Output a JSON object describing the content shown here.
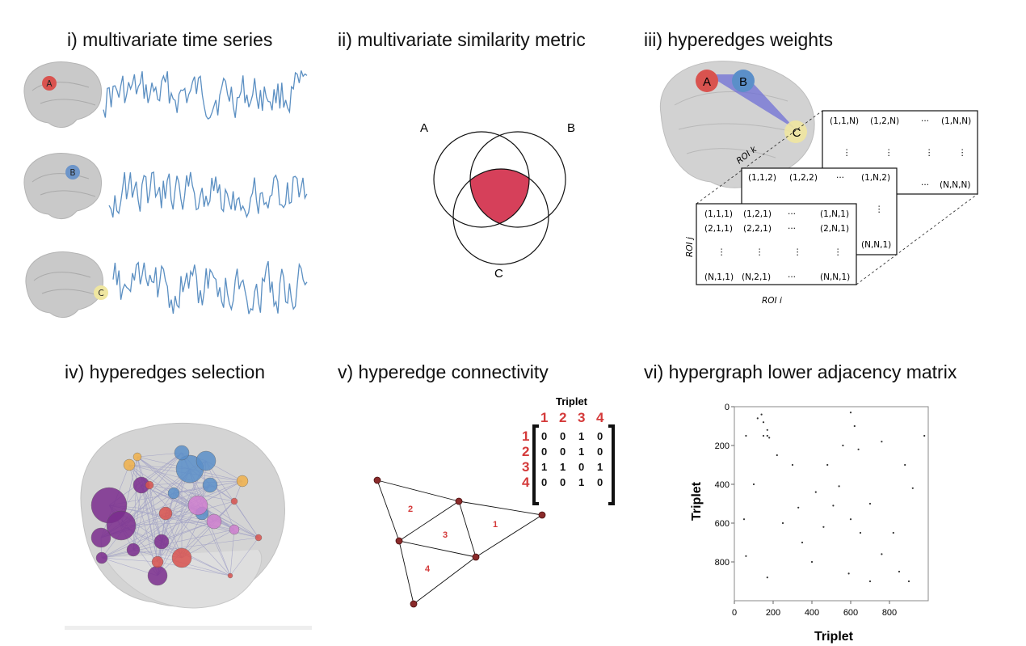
{
  "panels": {
    "p1": {
      "title": "i)  multivariate time series",
      "regions": [
        "A",
        "B",
        "C"
      ]
    },
    "p2": {
      "title": "ii) multivariate  similarity metric",
      "sets": [
        "A",
        "B",
        "C"
      ]
    },
    "p3": {
      "title": "iii) hyperedges weights",
      "regions": [
        "A",
        "B",
        "C"
      ],
      "axis_i": "ROI i",
      "axis_j": "ROI j",
      "axis_k": "ROI k",
      "back_matrix": [
        "(1,1,N)",
        "(1,2,N)",
        "···",
        "(1,N,N)",
        "(N,N,N)"
      ],
      "mid_matrix": [
        "(1,1,2)",
        "(1,2,2)",
        "···",
        "(1,N,2)",
        "(N,N,1)"
      ],
      "front_matrix": [
        "(1,1,1)",
        "(1,2,1)",
        "···",
        "(1,N,1)",
        "(2,1,1)",
        "(2,2,1)",
        "···",
        "(2,N,1)",
        "(N,1,1)",
        "(N,2,1)",
        "···",
        "(N,N,1)"
      ],
      "vdots": "⋮",
      "dots": "···"
    },
    "p4": {
      "title": "iv) hyperedges selection"
    },
    "p5": {
      "title": "v) hyperedge connectivity",
      "matrix_label": "Triplet",
      "col_headers": [
        "1",
        "2",
        "3",
        "4"
      ],
      "row_headers": [
        "1",
        "2",
        "3",
        "4"
      ],
      "matrix": [
        [
          "0",
          "0",
          "1",
          "0"
        ],
        [
          "0",
          "0",
          "1",
          "0"
        ],
        [
          "1",
          "1",
          "0",
          "1"
        ],
        [
          "0",
          "0",
          "1",
          "0"
        ]
      ],
      "triangle_labels": [
        "1",
        "2",
        "3",
        "4"
      ]
    },
    "p6": {
      "title": "vi) hypergraph lower adjacency matrix"
    }
  },
  "chart_data": {
    "type": "scatter",
    "title": "vi) hypergraph lower adjacency matrix",
    "xlabel": "Triplet",
    "ylabel": "Triplet",
    "xlim": [
      0,
      1000
    ],
    "ylim": [
      1000,
      0
    ],
    "xticks": [
      "0",
      "200",
      "400",
      "600",
      "800"
    ],
    "yticks": [
      "0",
      "200",
      "400",
      "600",
      "800"
    ],
    "points": [
      [
        120,
        60
      ],
      [
        140,
        40
      ],
      [
        150,
        80
      ],
      [
        170,
        120
      ],
      [
        60,
        150
      ],
      [
        150,
        150
      ],
      [
        170,
        150
      ],
      [
        180,
        160
      ],
      [
        300,
        300
      ],
      [
        420,
        440
      ],
      [
        510,
        510
      ],
      [
        600,
        580
      ],
      [
        650,
        650
      ],
      [
        760,
        760
      ],
      [
        850,
        850
      ],
      [
        900,
        900
      ],
      [
        600,
        30
      ],
      [
        620,
        100
      ],
      [
        560,
        200
      ],
      [
        480,
        300
      ],
      [
        700,
        500
      ],
      [
        350,
        700
      ],
      [
        250,
        600
      ],
      [
        820,
        650
      ],
      [
        920,
        420
      ],
      [
        100,
        400
      ],
      [
        50,
        580
      ],
      [
        640,
        220
      ],
      [
        540,
        410
      ],
      [
        400,
        800
      ],
      [
        700,
        900
      ],
      [
        880,
        300
      ],
      [
        220,
        250
      ],
      [
        330,
        520
      ],
      [
        460,
        620
      ],
      [
        760,
        180
      ],
      [
        980,
        150
      ],
      [
        60,
        770
      ],
      [
        170,
        880
      ],
      [
        590,
        860
      ]
    ]
  },
  "colors": {
    "red": "#d9534f",
    "blue": "#5b8fc9",
    "yellow": "#efe6a0",
    "purple": "#7b2d8e",
    "accent_red": "#d43a3a",
    "signal": "#5b8fc2"
  }
}
